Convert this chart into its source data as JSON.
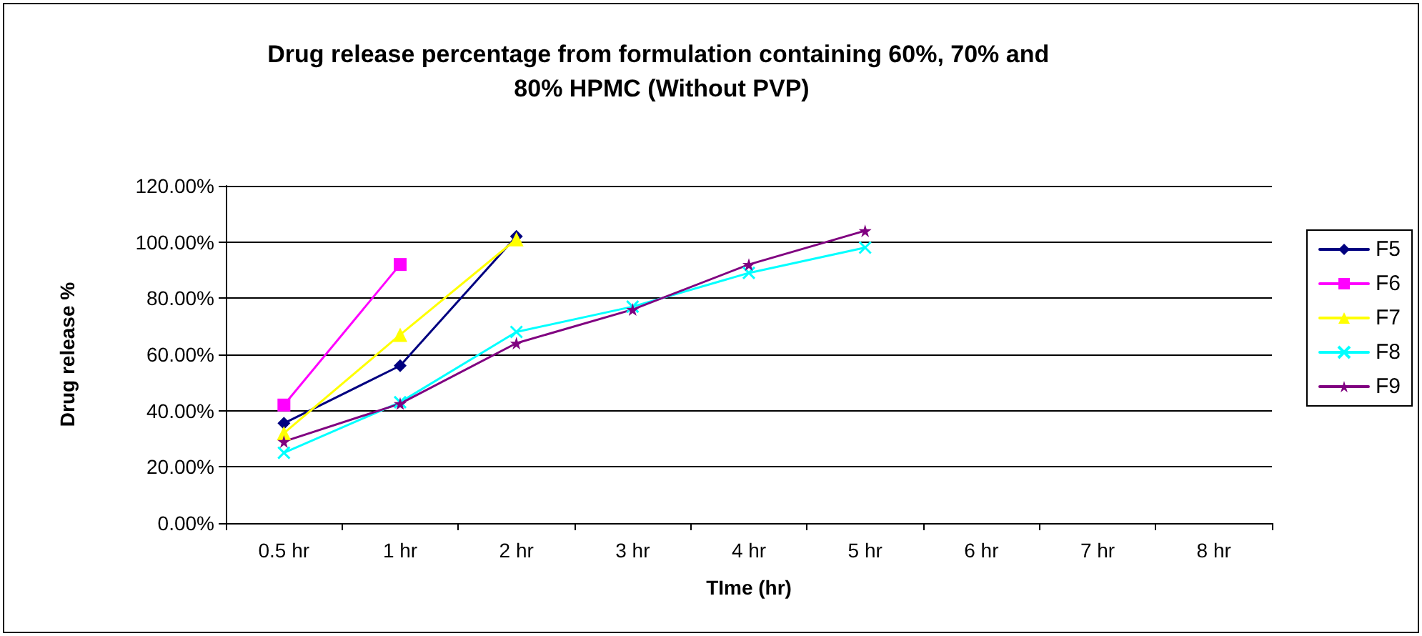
{
  "chart_data": {
    "type": "line",
    "title": "Drug release percentage from formulation containing 60%, 70% and 80% HPMC (Without PVP)",
    "xlabel": "TIme (hr)",
    "ylabel": "Drug release %",
    "categories": [
      "0.5 hr",
      "1 hr",
      "2 hr",
      "3 hr",
      "4 hr",
      "5 hr",
      "6 hr",
      "7 hr",
      "8 hr"
    ],
    "series": [
      {
        "name": "F5",
        "color": "#000080",
        "marker": "diamond",
        "values": [
          35.5,
          56,
          102,
          null,
          null,
          null,
          null,
          null,
          null
        ]
      },
      {
        "name": "F6",
        "color": "#ff00ff",
        "marker": "square",
        "values": [
          42,
          92,
          null,
          null,
          null,
          null,
          null,
          null,
          null
        ]
      },
      {
        "name": "F7",
        "color": "#ffff00",
        "marker": "triangle",
        "values": [
          32,
          67,
          101,
          null,
          null,
          null,
          null,
          null,
          null
        ]
      },
      {
        "name": "F8",
        "color": "#00ffff",
        "marker": "cross",
        "values": [
          25,
          43,
          68,
          77,
          89,
          98,
          null,
          null,
          null
        ]
      },
      {
        "name": "F9",
        "color": "#800080",
        "marker": "star",
        "values": [
          29,
          42.5,
          64,
          76,
          92,
          104,
          null,
          null,
          null
        ]
      }
    ],
    "ylim": [
      0,
      120
    ],
    "yticks": [
      {
        "value": 0,
        "label": "0.00%"
      },
      {
        "value": 20,
        "label": "20.00%"
      },
      {
        "value": 40,
        "label": "40.00%"
      },
      {
        "value": 60,
        "label": "60.00%"
      },
      {
        "value": 80,
        "label": "80.00%"
      },
      {
        "value": 100,
        "label": "100.00%"
      },
      {
        "value": 120,
        "label": "120.00%"
      }
    ],
    "grid": "y",
    "legend": "right",
    "line_style": "solid"
  }
}
